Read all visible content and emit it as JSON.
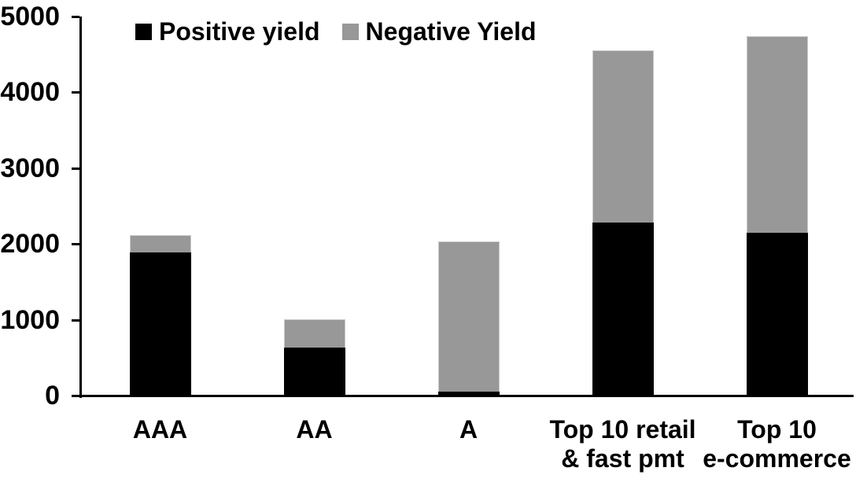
{
  "chart_data": {
    "type": "bar",
    "stacked": true,
    "title": "",
    "xlabel": "",
    "ylabel": "",
    "categories": [
      "AAA",
      "AA",
      "A",
      "Top 10 retail\n& fast pmt",
      "Top 10\ne-commerce"
    ],
    "series": [
      {
        "name": "Positive yield",
        "color": "#000000",
        "values": [
          1890,
          630,
          50,
          2280,
          2150
        ]
      },
      {
        "name": "Negative Yield",
        "color": "#989898",
        "values": [
          230,
          375,
          1980,
          2270,
          2590
        ]
      }
    ],
    "totals": [
      2120,
      1005,
      2030,
      4550,
      4740
    ],
    "ylim": [
      0,
      5000
    ],
    "ytick_interval": 1000,
    "ytick_labels": [
      "0",
      "1000",
      "2000",
      "3000",
      "4000",
      "5000"
    ],
    "grid": false,
    "legend_position": "top"
  },
  "colors": {
    "axis": "#000000",
    "background": "#ffffff",
    "positive": "#000000",
    "negative": "#989898"
  }
}
